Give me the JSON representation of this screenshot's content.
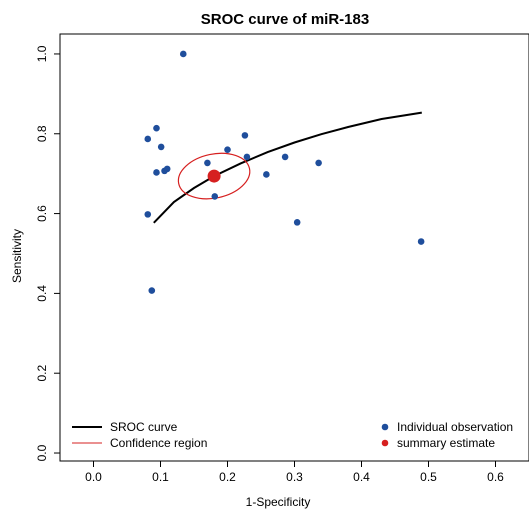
{
  "chart_data": {
    "type": "scatter",
    "title": "SROC curve of miR-183",
    "xlabel": "1-Specificity",
    "ylabel": "Sensitivity",
    "xlim": [
      -0.05,
      0.65
    ],
    "ylim": [
      -0.02,
      1.05
    ],
    "xticks": [
      "0.0",
      "0.1",
      "0.2",
      "0.3",
      "0.4",
      "0.5",
      "0.6"
    ],
    "xtick_values": [
      0.0,
      0.1,
      0.2,
      0.3,
      0.4,
      0.5,
      0.6
    ],
    "yticks": [
      "0.0",
      "0.2",
      "0.4",
      "0.6",
      "0.8",
      "1.0"
    ],
    "ytick_values": [
      0.0,
      0.2,
      0.4,
      0.6,
      0.8,
      1.0
    ],
    "grid": false,
    "series": [
      {
        "name": "Individual observation",
        "color": "#1f4e9c",
        "points": [
          {
            "x": 0.134,
            "y": 1.0
          },
          {
            "x": 0.081,
            "y": 0.787
          },
          {
            "x": 0.094,
            "y": 0.814
          },
          {
            "x": 0.101,
            "y": 0.767
          },
          {
            "x": 0.094,
            "y": 0.703
          },
          {
            "x": 0.106,
            "y": 0.707
          },
          {
            "x": 0.11,
            "y": 0.712
          },
          {
            "x": 0.081,
            "y": 0.598
          },
          {
            "x": 0.087,
            "y": 0.407
          },
          {
            "x": 0.17,
            "y": 0.727
          },
          {
            "x": 0.181,
            "y": 0.643
          },
          {
            "x": 0.2,
            "y": 0.76
          },
          {
            "x": 0.226,
            "y": 0.796
          },
          {
            "x": 0.229,
            "y": 0.742
          },
          {
            "x": 0.258,
            "y": 0.698
          },
          {
            "x": 0.286,
            "y": 0.742
          },
          {
            "x": 0.304,
            "y": 0.578
          },
          {
            "x": 0.336,
            "y": 0.727
          },
          {
            "x": 0.489,
            "y": 0.53
          }
        ]
      },
      {
        "name": "summary estimate",
        "color": "#d62020",
        "points": [
          {
            "x": 0.18,
            "y": 0.694
          }
        ]
      },
      {
        "name": "SROC curve",
        "color": "#000000",
        "curve": [
          {
            "x": 0.09,
            "y": 0.577
          },
          {
            "x": 0.12,
            "y": 0.629
          },
          {
            "x": 0.15,
            "y": 0.664
          },
          {
            "x": 0.18,
            "y": 0.694
          },
          {
            "x": 0.22,
            "y": 0.726
          },
          {
            "x": 0.26,
            "y": 0.754
          },
          {
            "x": 0.3,
            "y": 0.778
          },
          {
            "x": 0.34,
            "y": 0.799
          },
          {
            "x": 0.38,
            "y": 0.817
          },
          {
            "x": 0.43,
            "y": 0.837
          },
          {
            "x": 0.49,
            "y": 0.853
          }
        ]
      },
      {
        "name": "Confidence region",
        "color": "#d62020",
        "ellipse": {
          "cx": 0.18,
          "cy": 0.694,
          "rx": 0.054,
          "ry": 0.055,
          "rotation_deg": -12
        }
      }
    ],
    "legend_left": [
      {
        "label": "SROC curve",
        "style": "line",
        "color": "#000000"
      },
      {
        "label": "Confidence region",
        "style": "thin-line",
        "color": "#d62020"
      }
    ],
    "legend_right": [
      {
        "label": "Individual observation",
        "style": "dot",
        "color": "#1f4e9c"
      },
      {
        "label": "summary estimate",
        "style": "dot",
        "color": "#d62020"
      }
    ]
  }
}
